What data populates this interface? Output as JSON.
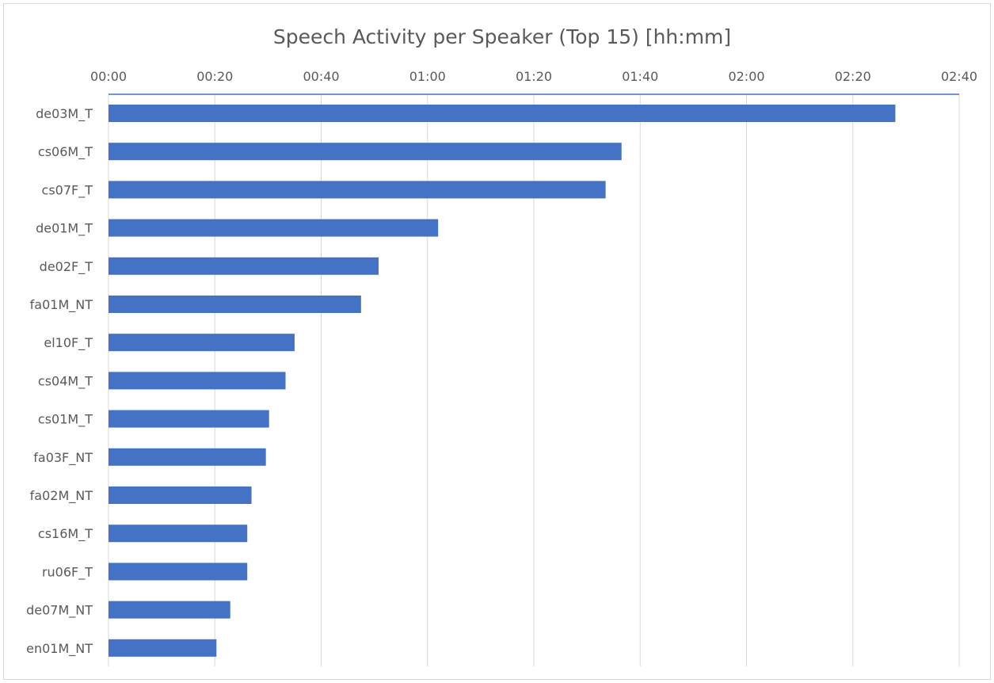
{
  "chart_data": {
    "type": "bar",
    "orientation": "horizontal",
    "title": "Speech Activity per Speaker (Top 15) [hh:mm]",
    "xlabel": "",
    "ylabel": "",
    "value_unit": "minutes",
    "xlim": [
      0,
      160
    ],
    "xticks": [
      0,
      20,
      40,
      60,
      80,
      100,
      120,
      140,
      160
    ],
    "xtick_labels": [
      "00:00",
      "00:20",
      "00:40",
      "01:00",
      "01:20",
      "01:40",
      "02:00",
      "02:20",
      "02:40"
    ],
    "axis_position": "top",
    "grid": true,
    "legend": "none",
    "bar_color": "#4472c4",
    "gridline_color": "#d9d9d9",
    "categories": [
      "de03M_T",
      "cs06M_T",
      "cs07F_T",
      "de01M_T",
      "de02F_T",
      "fa01M_NT",
      "el10F_T",
      "cs04M_T",
      "cs01M_T",
      "fa03F_NT",
      "fa02M_NT",
      "cs16M_T",
      "ru06F_T",
      "de07M_NT",
      "en01M_NT"
    ],
    "values": [
      148,
      96.5,
      93.5,
      62,
      50.8,
      47.5,
      35,
      33.3,
      30.2,
      29.6,
      26.9,
      26.1,
      26.1,
      22.9,
      20.3
    ]
  }
}
